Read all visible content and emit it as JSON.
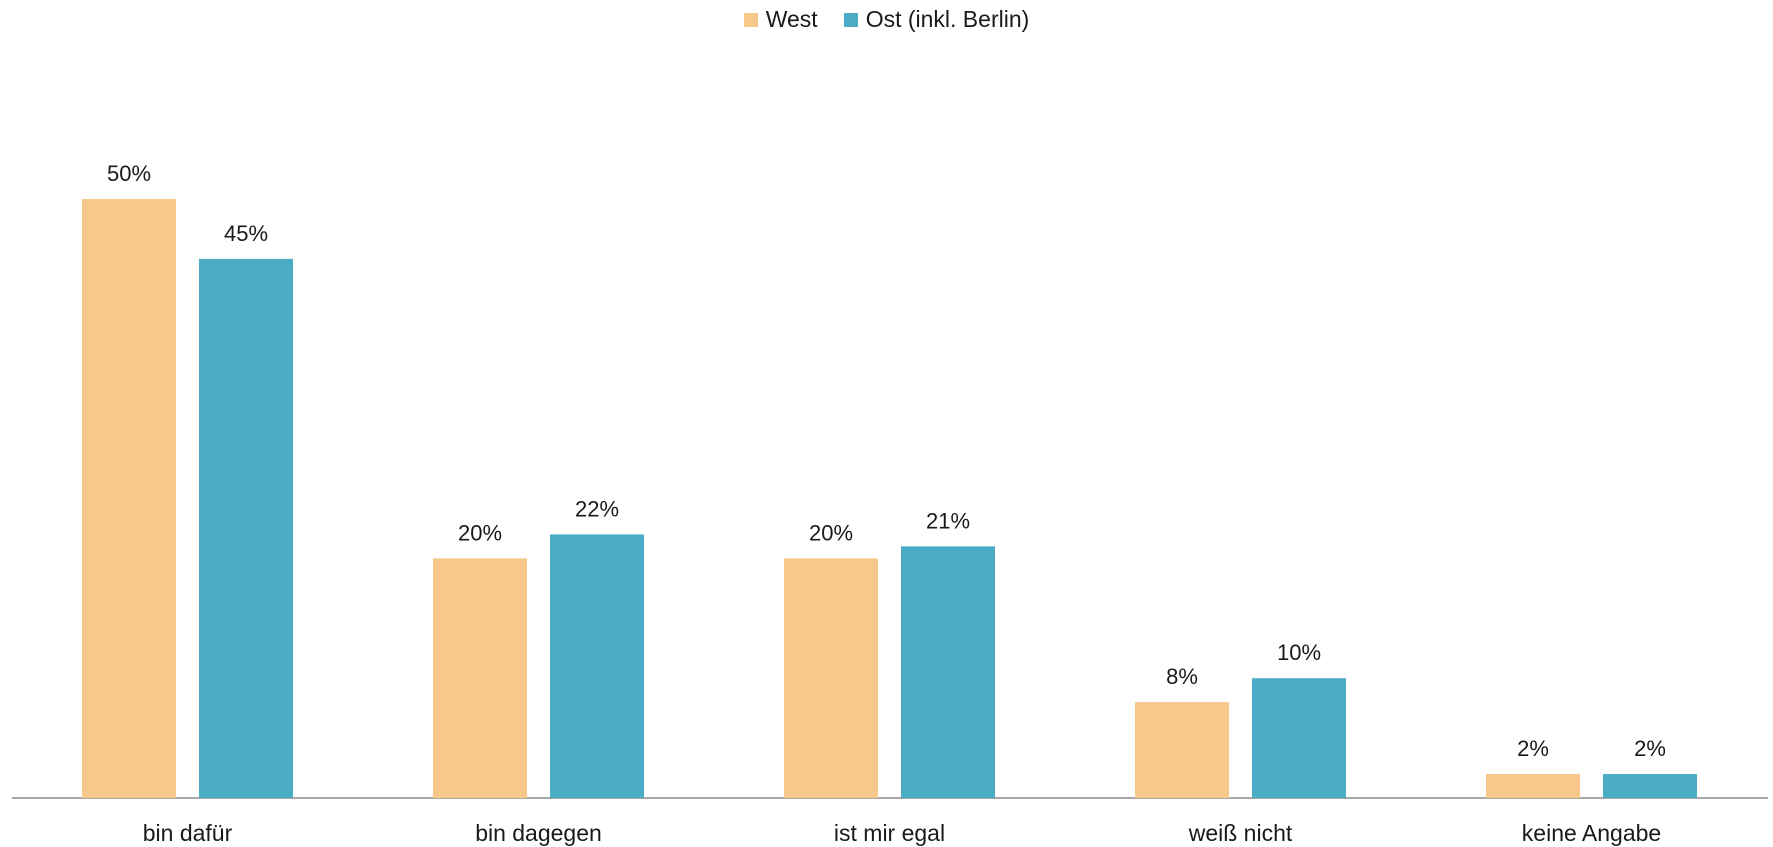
{
  "chart_data": {
    "type": "bar",
    "categories": [
      "bin dafür",
      "bin dagegen",
      "ist mir egal",
      "weiß nicht",
      "keine Angabe"
    ],
    "series": [
      {
        "name": "West",
        "values": [
          50,
          20,
          20,
          8,
          2
        ],
        "labels": [
          "50%",
          "20%",
          "20%",
          "8%",
          "2%"
        ],
        "color": "#F8C78A"
      },
      {
        "name": "Ost (inkl. Berlin)",
        "values": [
          45,
          22,
          21,
          10,
          2
        ],
        "labels": [
          "45%",
          "22%",
          "21%",
          "10%",
          "2%"
        ],
        "color": "#4BACC6"
      }
    ],
    "ylim": [
      0,
      50
    ],
    "legend": "top-center",
    "grid": false
  }
}
